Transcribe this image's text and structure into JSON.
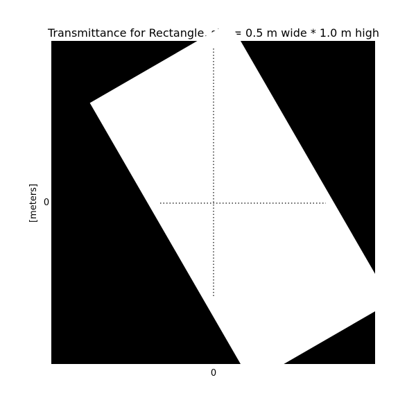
{
  "chart_data": {
    "type": "heatmap",
    "title": "Transmittance for Rectangle, size= 0.5 m wide * 1.0 m high",
    "ylabel": "[meters]",
    "xlabel": "",
    "x_ticks": [
      "0"
    ],
    "y_ticks": [
      "0"
    ],
    "aperture": {
      "shape": "rectangle",
      "width_m": 0.5,
      "height_m": 1.0,
      "rotation_deg": 30,
      "inside_value": 1,
      "outside_value": 0
    },
    "colors": {
      "inside": "#ffffff",
      "outside": "#000000"
    },
    "grid": "dotted center crosshair"
  }
}
